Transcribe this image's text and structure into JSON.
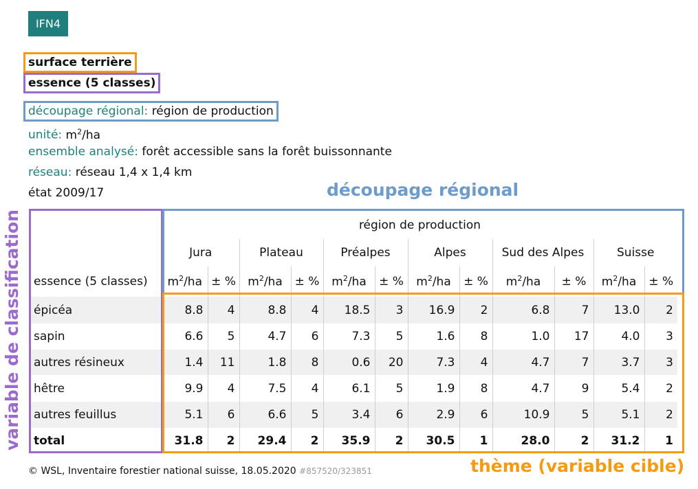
{
  "badge": "IFN4",
  "topic": "surface terrière",
  "classification": "essence (5 classes)",
  "meta": {
    "region_key": "découpage régional:",
    "region_val": "région de production",
    "unit_key": "unité:",
    "unit_val_pre": "m",
    "unit_val_sup": "2",
    "unit_val_post": "/ha",
    "ensemble_key": "ensemble analysé:",
    "ensemble_val": "forêt accessible sans la forêt buissonnante",
    "reseau_key": "réseau:",
    "reseau_val": "réseau 1,4 x 1,4 km",
    "etat": "état 2009/17"
  },
  "annotations": {
    "regional": "découpage régional",
    "classification": "variable de classification",
    "theme": "thème (variable cible)"
  },
  "table": {
    "group_header": "région de production",
    "row_header": "essence (5 classes)",
    "unit_m": "m",
    "unit_sup": "2",
    "unit_ha": "/ha",
    "unit_pct": "± %",
    "regions": [
      "Jura",
      "Plateau",
      "Préalpes",
      "Alpes",
      "Sud des Alpes",
      "Suisse"
    ],
    "rows": [
      {
        "label": "épicéa",
        "values": [
          "8.8",
          "4",
          "8.8",
          "4",
          "18.5",
          "3",
          "16.9",
          "2",
          "6.8",
          "7",
          "13.0",
          "2"
        ]
      },
      {
        "label": "sapin",
        "values": [
          "6.6",
          "5",
          "4.7",
          "6",
          "7.3",
          "5",
          "1.6",
          "8",
          "1.0",
          "17",
          "4.0",
          "3"
        ]
      },
      {
        "label": "autres résineux",
        "values": [
          "1.4",
          "11",
          "1.8",
          "8",
          "0.6",
          "20",
          "7.3",
          "4",
          "4.7",
          "7",
          "3.7",
          "3"
        ]
      },
      {
        "label": "hêtre",
        "values": [
          "9.9",
          "4",
          "7.5",
          "4",
          "6.1",
          "5",
          "1.9",
          "8",
          "4.7",
          "9",
          "5.4",
          "2"
        ]
      },
      {
        "label": "autres feuillus",
        "values": [
          "5.1",
          "6",
          "6.6",
          "5",
          "3.4",
          "6",
          "2.9",
          "6",
          "10.9",
          "5",
          "5.1",
          "2"
        ]
      },
      {
        "label": "total",
        "values": [
          "31.8",
          "2",
          "29.4",
          "2",
          "35.9",
          "2",
          "30.5",
          "1",
          "28.0",
          "2",
          "31.2",
          "1"
        ]
      }
    ]
  },
  "footer": {
    "text": "© WSL, Inventaire forestier national suisse, 18.05.2020",
    "id": "#857520/323851"
  },
  "colors": {
    "orange": "#f39c12",
    "purple": "#9b6bcc",
    "blue": "#6d9bcb",
    "teal": "#1f7f7c"
  }
}
